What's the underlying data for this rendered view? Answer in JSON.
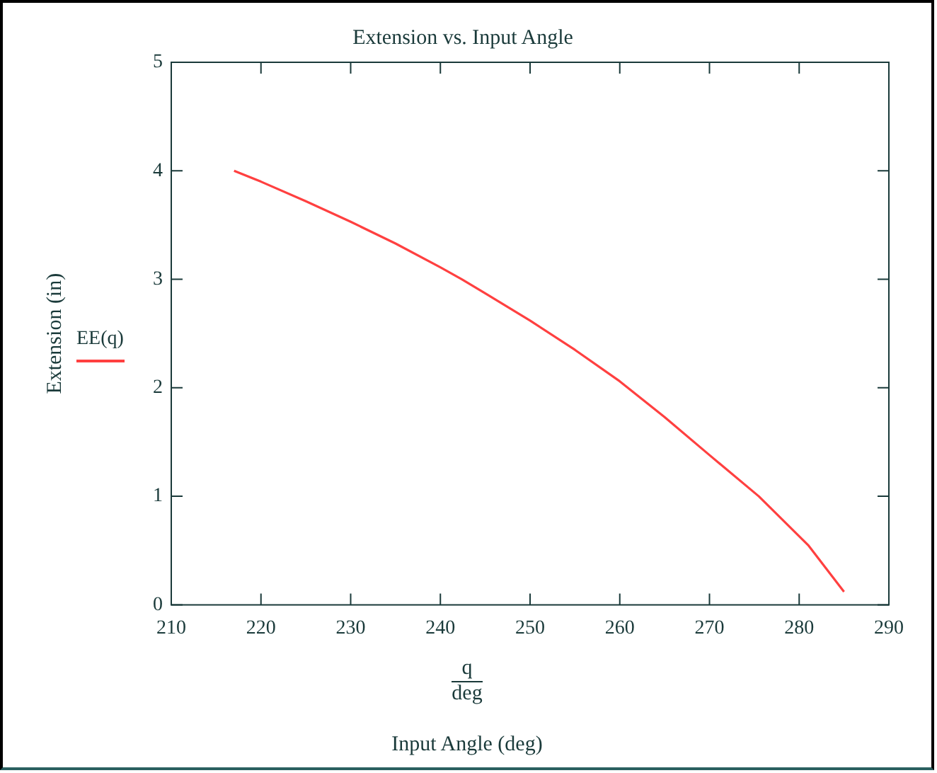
{
  "chart_data": {
    "type": "line",
    "title": "Extension vs. Input Angle",
    "xlabel": "Input Angle (deg)",
    "ylabel": "Extension (in)",
    "annotations": [
      "q",
      "deg"
    ],
    "series": [
      {
        "name": "EE(q)",
        "color": "#ff4040",
        "x": [
          217,
          220,
          225,
          230,
          235,
          240,
          242.4,
          245,
          250,
          255,
          260,
          265,
          270,
          275.5,
          281,
          285
        ],
        "values": [
          4.0,
          3.9,
          3.72,
          3.53,
          3.33,
          3.11,
          3.0,
          2.87,
          2.62,
          2.35,
          2.06,
          1.73,
          1.38,
          1.0,
          0.55,
          0.12
        ]
      }
    ],
    "xlim": [
      210,
      290
    ],
    "xticks": [
      210,
      220,
      230,
      240,
      250,
      260,
      270,
      280,
      290
    ],
    "ylim": [
      0,
      5
    ],
    "yticks": [
      0,
      1,
      2,
      3,
      4,
      5
    ],
    "grid": false,
    "legend": "left",
    "marker": "none",
    "line_style": "solid"
  }
}
